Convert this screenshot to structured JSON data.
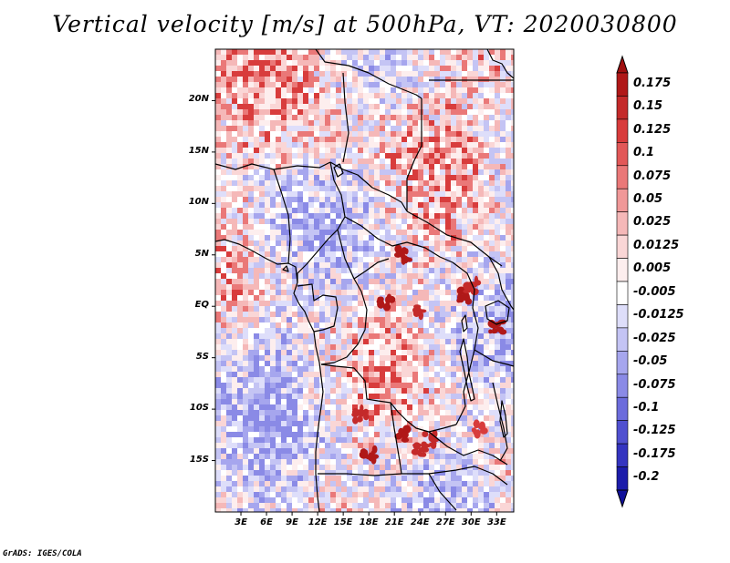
{
  "title": "Vertical velocity [m/s] at 500hPa, VT: 2020030800",
  "map": {
    "region": "Central Africa",
    "lat_range": [
      -20,
      25
    ],
    "lon_range": [
      0,
      35
    ],
    "lat_ticks": [
      {
        "value": 20,
        "label": "20N"
      },
      {
        "value": 15,
        "label": "15N"
      },
      {
        "value": 10,
        "label": "10N"
      },
      {
        "value": 5,
        "label": "5N"
      },
      {
        "value": 0,
        "label": "EQ"
      },
      {
        "value": -5,
        "label": "5S"
      },
      {
        "value": -10,
        "label": "10S"
      },
      {
        "value": -15,
        "label": "15S"
      }
    ],
    "lon_ticks": [
      {
        "value": 3,
        "label": "3E"
      },
      {
        "value": 6,
        "label": "6E"
      },
      {
        "value": 9,
        "label": "9E"
      },
      {
        "value": 12,
        "label": "12E"
      },
      {
        "value": 15,
        "label": "15E"
      },
      {
        "value": 18,
        "label": "18E"
      },
      {
        "value": 21,
        "label": "21E"
      },
      {
        "value": 24,
        "label": "24E"
      },
      {
        "value": 27,
        "label": "27E"
      },
      {
        "value": 30,
        "label": "30E"
      },
      {
        "value": 33,
        "label": "33E"
      }
    ]
  },
  "colorbar": {
    "levels": [
      {
        "label": "0.175",
        "color": "#b01818"
      },
      {
        "label": "0.15",
        "color": "#c42a2a"
      },
      {
        "label": "0.125",
        "color": "#d83c3c"
      },
      {
        "label": "0.1",
        "color": "#e25858"
      },
      {
        "label": "0.075",
        "color": "#ea7878"
      },
      {
        "label": "0.05",
        "color": "#f09898"
      },
      {
        "label": "0.025",
        "color": "#f5b8b8"
      },
      {
        "label": "0.0125",
        "color": "#fad6d6"
      },
      {
        "label": "0.005",
        "color": "#fdeeee"
      },
      {
        "label": "-0.005",
        "color": "#ffffff"
      },
      {
        "label": "-0.0125",
        "color": "#dedefa"
      },
      {
        "label": "-0.025",
        "color": "#c4c4f4"
      },
      {
        "label": "-0.05",
        "color": "#a6a6ee"
      },
      {
        "label": "-0.075",
        "color": "#8a8ae6"
      },
      {
        "label": "-0.1",
        "color": "#6c6cdc"
      },
      {
        "label": "-0.125",
        "color": "#5050d0"
      },
      {
        "label": "-0.175",
        "color": "#3434c0"
      },
      {
        "label": "-0.2",
        "color": "#1c1caa"
      }
    ],
    "top_color": "#a01010",
    "bottom_color": "#10109a"
  },
  "footer": "GrADS: IGES/COLA"
}
